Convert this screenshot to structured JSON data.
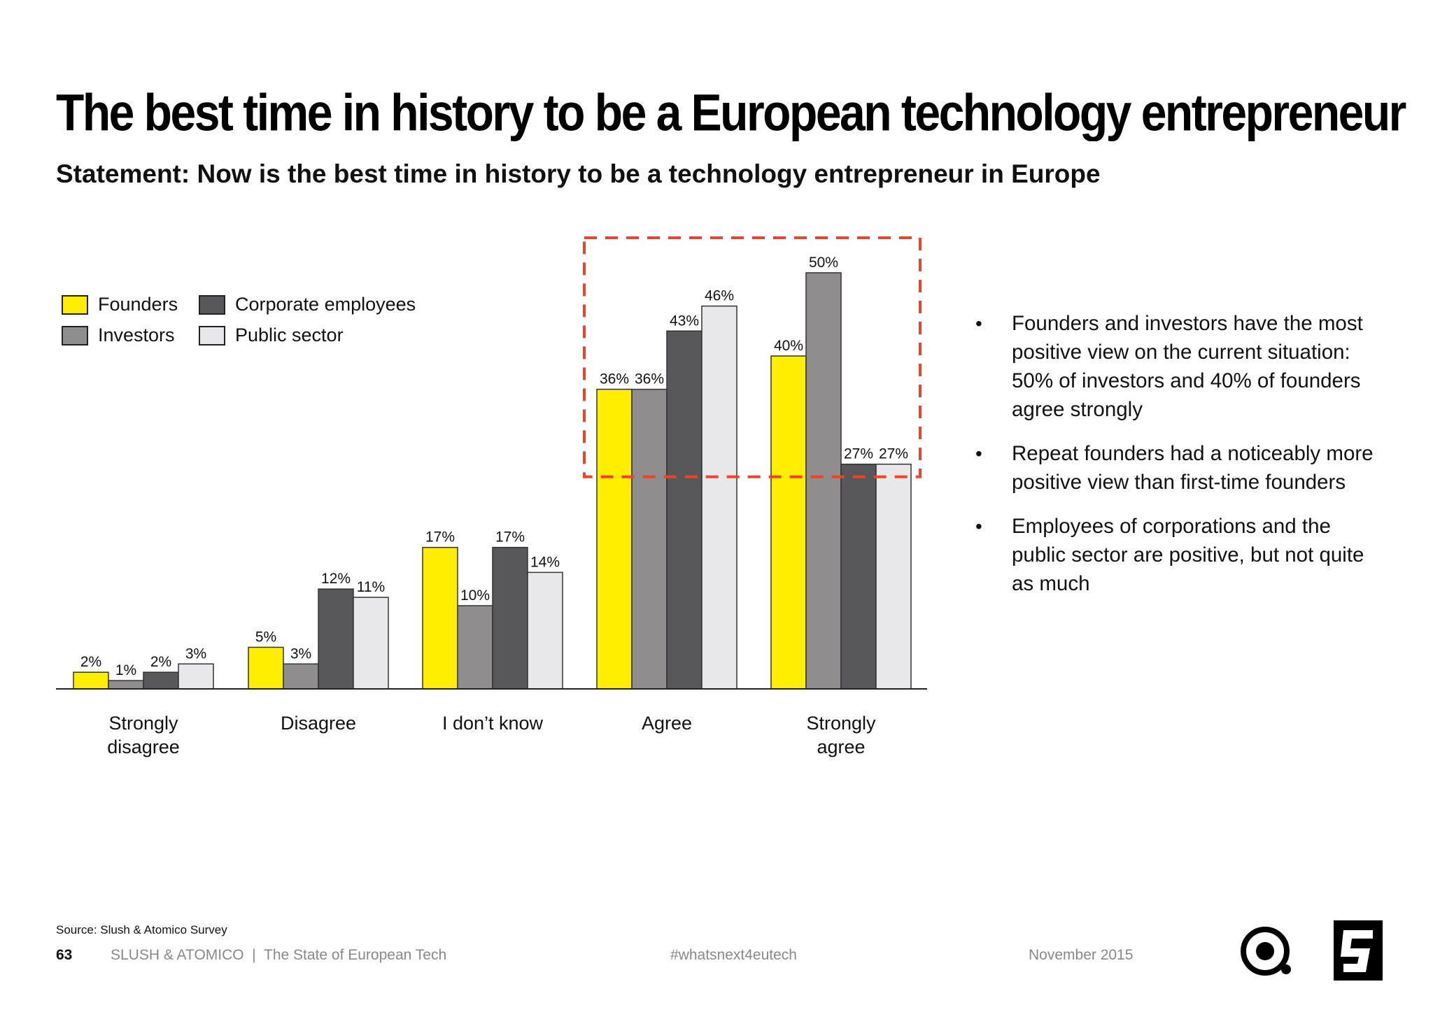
{
  "header": {
    "title": "The best time in history to be a European technology entrepreneur",
    "subtitle": "Statement: Now is the best time in history to be a technology entrepreneur in Europe"
  },
  "chart_data": {
    "type": "bar",
    "categories": [
      "Strongly disagree",
      "Disagree",
      "I don’t know",
      "Agree",
      "Strongly agree"
    ],
    "category_lines": [
      [
        "Strongly",
        "disagree"
      ],
      [
        "Disagree"
      ],
      [
        "I don’t know"
      ],
      [
        "Agree"
      ],
      [
        "Strongly",
        "agree"
      ]
    ],
    "series": [
      {
        "name": "Founders",
        "color": "#ffee00",
        "values": [
          2,
          5,
          17,
          36,
          40
        ],
        "labels": [
          "2%",
          "5%",
          "17%",
          "36%",
          "40%"
        ]
      },
      {
        "name": "Investors",
        "color": "#908d8e",
        "values": [
          1,
          3,
          10,
          36,
          50
        ],
        "labels": [
          "1%",
          "3%",
          "10%",
          "36%",
          "50%"
        ]
      },
      {
        "name": "Corporate employees",
        "color": "#58585a",
        "values": [
          2,
          12,
          17,
          43,
          27
        ],
        "labels": [
          "2%",
          "12%",
          "17%",
          "43%",
          "27%"
        ]
      },
      {
        "name": "Public sector",
        "color": "#e8e7ea",
        "values": [
          3,
          11,
          14,
          46,
          27
        ],
        "labels": [
          "3%",
          "11%",
          "14%",
          "46%",
          "27%"
        ]
      }
    ],
    "ylim": [
      0,
      55
    ],
    "highlight": {
      "categories": [
        "Agree",
        "Strongly agree"
      ],
      "color": "#e8452c",
      "style": "dashed"
    },
    "legend_position": "top-left"
  },
  "bullets": [
    "Founders and investors have the most positive view on the current situation: 50% of investors and 40% of founders agree strongly",
    "Repeat founders had a noticeably more positive view than first-time founders",
    "Employees of corporations and the public sector are positive, but not quite as much"
  ],
  "bullet_glyph": "•",
  "footer": {
    "source": "Source: Slush & Atomico Survey",
    "page_number": "63",
    "brand": "SLUSH & ATOMICO  |  The State of European Tech",
    "hashtag": "#whatsnext4eutech",
    "date": "November 2015"
  },
  "logos": [
    "atomico-logo",
    "slush-logo"
  ]
}
